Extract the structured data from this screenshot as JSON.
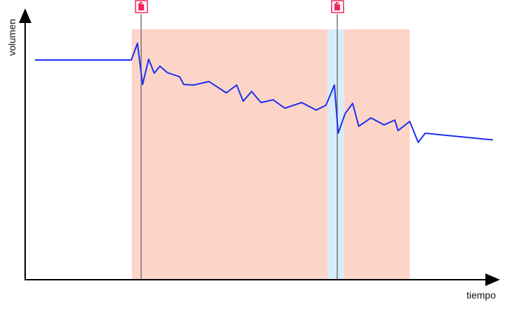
{
  "chart_data": {
    "type": "line",
    "title": "",
    "xlabel": "tiempo",
    "ylabel": "volumen",
    "xlim": [
      0,
      100
    ],
    "ylim": [
      0,
      100
    ],
    "grid": false,
    "series": [
      {
        "x": [
          2.1,
          22.7,
          24.0,
          25.1,
          26.4,
          27.6,
          28.8,
          30.4,
          33.0,
          33.9,
          36.0,
          39.3,
          43.0,
          45.2,
          46.6,
          48.4,
          50.4,
          53.0,
          55.5,
          59.1,
          62.2,
          64.3,
          66.1,
          66.9,
          68.4,
          70.0,
          71.3,
          73.9,
          76.7,
          79.0,
          79.7,
          82.2,
          84.0,
          85.5,
          100
        ],
        "y": [
          81.6,
          81.6,
          87.8,
          72.5,
          81.9,
          76.7,
          79.3,
          76.9,
          75.4,
          72.5,
          72.3,
          73.6,
          69.4,
          72.3,
          66.3,
          69.9,
          65.8,
          66.8,
          63.7,
          65.8,
          63.0,
          64.8,
          72.3,
          54.4,
          61.7,
          65.5,
          57.0,
          60.1,
          57.5,
          59.3,
          55.4,
          58.8,
          51.0,
          54.4,
          51.9
        ],
        "color": "#1a2ff0"
      }
    ],
    "regions": [
      {
        "x": [
          22.8,
          82.2
        ],
        "y": [
          0,
          93
        ],
        "color": "#fdd5c8"
      },
      {
        "x": [
          64.6,
          68.2
        ],
        "y": [
          0,
          93
        ],
        "color": "#d9ecfa"
      }
    ],
    "events": [
      {
        "x": 24.8,
        "icon": "fuel-can-icon",
        "color": "#f0275a"
      },
      {
        "x": 66.7,
        "icon": "fuel-can-icon",
        "color": "#f0275a"
      }
    ]
  }
}
